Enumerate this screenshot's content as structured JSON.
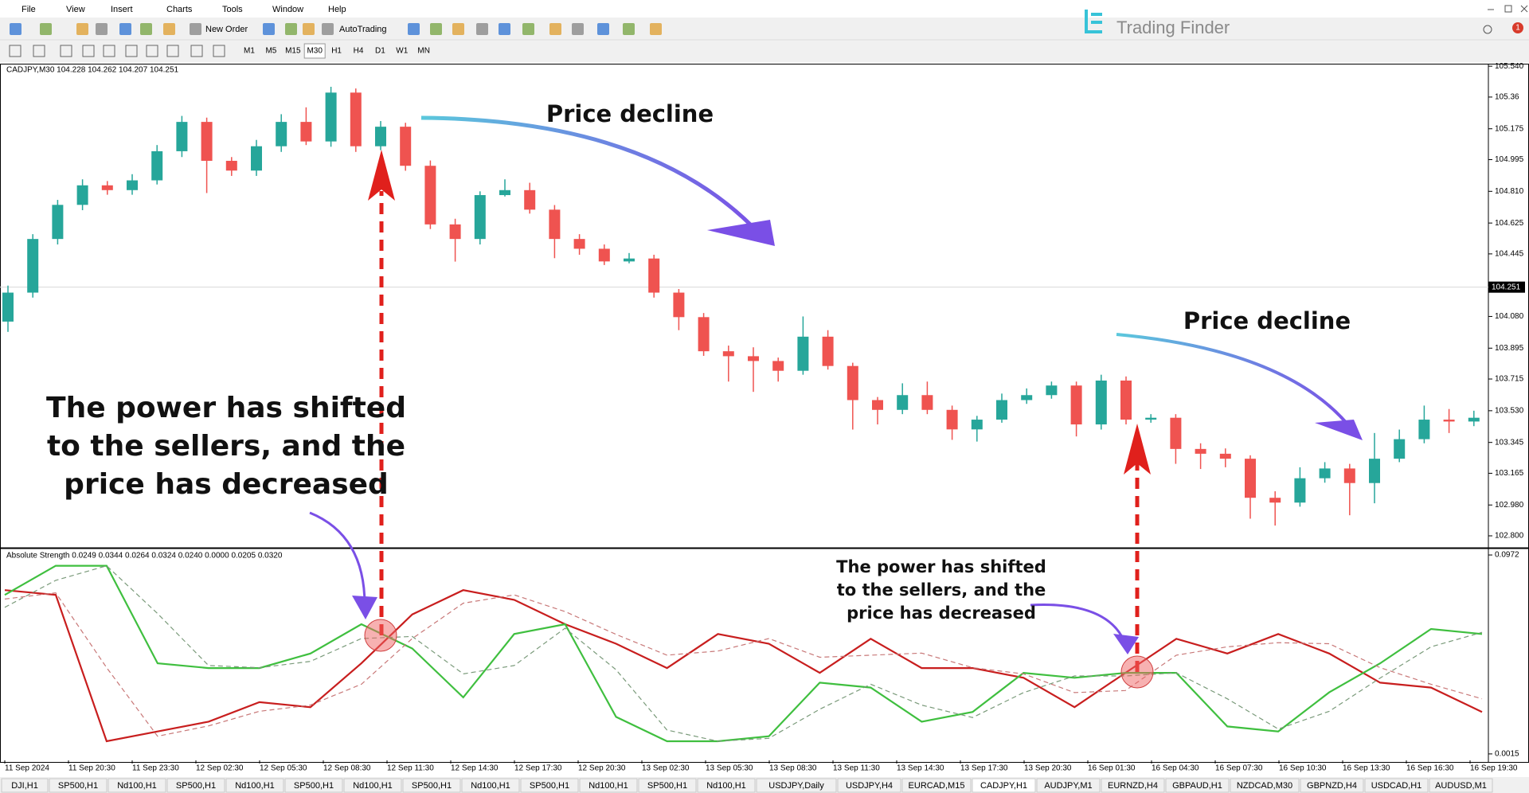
{
  "menu": [
    "File",
    "View",
    "Insert",
    "Charts",
    "Tools",
    "Window",
    "Help"
  ],
  "toolbar": {
    "new_order": "New Order",
    "autotrading": "AutoTrading",
    "timeframes": [
      "M1",
      "M5",
      "M15",
      "M30",
      "H1",
      "H4",
      "D1",
      "W1",
      "MN"
    ]
  },
  "logo": "Trading Finder",
  "badge": "1",
  "price_chart": {
    "type": "candlestick",
    "header": "CADJPY,M30  104.228 104.262 104.207 104.251",
    "up_color": "#26a69a",
    "down_color": "#ef5350",
    "ylim": [
      102.735,
      105.55
    ],
    "yticks": [
      {
        "value": 105.54,
        "label": "105.540"
      },
      105.36,
      105.175,
      104.995,
      {
        "value": 104.81,
        "label": "104.810"
      },
      104.625,
      104.445,
      {
        "value": 104.08,
        "label": "104.080"
      },
      103.895,
      103.715,
      {
        "value": 103.53,
        "label": "103.530"
      },
      103.345,
      103.165,
      {
        "value": 102.98,
        "label": "102.980"
      },
      {
        "value": 102.8,
        "label": "102.800"
      }
    ],
    "current_price": {
      "value": 104.251,
      "label": "104.251"
    },
    "candles": [
      [
        104.05,
        104.26,
        103.99,
        104.219
      ],
      [
        104.219,
        104.56,
        104.19,
        104.532
      ],
      [
        104.532,
        104.76,
        104.5,
        104.731
      ],
      [
        104.731,
        104.88,
        104.7,
        104.845
      ],
      [
        104.845,
        104.87,
        104.79,
        104.817
      ],
      [
        104.817,
        104.91,
        104.79,
        104.874
      ],
      [
        104.874,
        105.08,
        104.85,
        105.044
      ],
      [
        105.044,
        105.25,
        105.01,
        105.215
      ],
      [
        105.215,
        105.24,
        104.8,
        104.988
      ],
      [
        104.988,
        105.01,
        104.9,
        104.931
      ],
      [
        104.931,
        105.11,
        104.9,
        105.073
      ],
      [
        105.073,
        105.26,
        105.04,
        105.215
      ],
      [
        105.215,
        105.3,
        105.08,
        105.101
      ],
      [
        105.101,
        105.42,
        105.07,
        105.386
      ],
      [
        105.386,
        105.41,
        105.04,
        105.073
      ],
      [
        105.073,
        105.22,
        105.05,
        105.187
      ],
      [
        105.187,
        105.21,
        104.93,
        104.959
      ],
      [
        104.959,
        104.99,
        104.59,
        104.617
      ],
      [
        104.617,
        104.65,
        104.4,
        104.532
      ],
      [
        104.532,
        104.81,
        104.5,
        104.788
      ],
      [
        104.788,
        104.88,
        104.78,
        104.817
      ],
      [
        104.817,
        104.86,
        104.68,
        104.703
      ],
      [
        104.703,
        104.73,
        104.42,
        104.532
      ],
      [
        104.532,
        104.56,
        104.44,
        104.475
      ],
      [
        104.475,
        104.5,
        104.38,
        104.401
      ],
      [
        104.401,
        104.45,
        104.39,
        104.418
      ],
      [
        104.418,
        104.44,
        104.19,
        104.219
      ],
      [
        104.219,
        104.24,
        104.0,
        104.076
      ],
      [
        104.076,
        104.1,
        103.85,
        103.877
      ],
      [
        103.877,
        103.91,
        103.7,
        103.848
      ],
      [
        103.848,
        103.9,
        103.64,
        103.82
      ],
      [
        103.82,
        103.84,
        103.7,
        103.763
      ],
      [
        103.763,
        104.08,
        103.74,
        103.962
      ],
      [
        103.962,
        104.0,
        103.77,
        103.791
      ],
      [
        103.791,
        103.81,
        103.42,
        103.592
      ],
      [
        103.592,
        103.61,
        103.45,
        103.535
      ],
      [
        103.535,
        103.69,
        103.51,
        103.621
      ],
      [
        103.621,
        103.7,
        103.51,
        103.535
      ],
      [
        103.535,
        103.56,
        103.36,
        103.421
      ],
      [
        103.421,
        103.5,
        103.35,
        103.478
      ],
      [
        103.478,
        103.63,
        103.46,
        103.592
      ],
      [
        103.592,
        103.66,
        103.57,
        103.621
      ],
      [
        103.621,
        103.7,
        103.6,
        103.677
      ],
      [
        103.677,
        103.7,
        103.38,
        103.45
      ],
      [
        103.45,
        103.74,
        103.42,
        103.706
      ],
      [
        103.706,
        103.73,
        103.45,
        103.478
      ],
      [
        103.478,
        103.51,
        103.46,
        103.489
      ],
      [
        103.489,
        103.51,
        103.22,
        103.307
      ],
      [
        103.307,
        103.34,
        103.19,
        103.279
      ],
      [
        103.279,
        103.31,
        103.2,
        103.25
      ],
      [
        103.25,
        103.27,
        102.9,
        103.022
      ],
      [
        103.022,
        103.06,
        102.86,
        102.994
      ],
      [
        102.994,
        103.2,
        102.97,
        103.136
      ],
      [
        103.136,
        103.23,
        103.11,
        103.193
      ],
      [
        103.193,
        103.22,
        102.92,
        103.108
      ],
      [
        103.108,
        103.4,
        102.99,
        103.25
      ],
      [
        103.25,
        103.42,
        103.23,
        103.364
      ],
      [
        103.364,
        103.56,
        103.34,
        103.478
      ],
      [
        103.478,
        103.54,
        103.4,
        103.467
      ],
      [
        103.467,
        103.53,
        103.44,
        103.489
      ]
    ],
    "time_labels": [
      "11 Sep 2024",
      "11 Sep 20:30",
      "11 Sep 23:30",
      "12 Sep 02:30",
      "12 Sep 05:30",
      "12 Sep 08:30",
      "12 Sep 11:30",
      "12 Sep 14:30",
      "12 Sep 17:30",
      "12 Sep 20:30",
      "13 Sep 02:30",
      "13 Sep 05:30",
      "13 Sep 08:30",
      "13 Sep 11:30",
      "13 Sep 14:30",
      "13 Sep 17:30",
      "13 Sep 20:30",
      "16 Sep 01:30",
      "16 Sep 04:30",
      "16 Sep 07:30",
      "16 Sep 10:30",
      "16 Sep 13:30",
      "16 Sep 16:30",
      "16 Sep 19:30"
    ]
  },
  "indicator": {
    "type": "line",
    "header": "Absolute Strength 0.0249 0.0344 0.0264 0.0324 0.0240 0.0000 0.0205 0.0320",
    "ylim": [
      -0.0016,
      0.0999
    ],
    "yticks": [
      0.0972,
      0.0015
    ],
    "series": [
      {
        "color": "#c81e1e",
        "dashed": false,
        "values": [
          0.0803,
          0.078,
          0.0076,
          0.0123,
          0.017,
          0.0264,
          0.024,
          0.0451,
          0.0686,
          0.0803,
          0.0756,
          0.0639,
          0.0545,
          0.0428,
          0.0592,
          0.0545,
          0.0405,
          0.0569,
          0.0428,
          0.0428,
          0.0381,
          0.024,
          0.0405,
          0.0569,
          0.0498,
          0.0592,
          0.0498,
          0.0358,
          0.0334,
          0.0217
        ]
      },
      {
        "color": "#3fbf3f",
        "dashed": false,
        "values": [
          0.078,
          0.092,
          0.092,
          0.0451,
          0.0428,
          0.0428,
          0.0498,
          0.0639,
          0.0522,
          0.0287,
          0.0592,
          0.0639,
          0.0193,
          0.0076,
          0.0076,
          0.01,
          0.0358,
          0.0334,
          0.017,
          0.0217,
          0.0405,
          0.0381,
          0.0405,
          0.0405,
          0.0147,
          0.0123,
          0.0311,
          0.0451,
          0.0616,
          0.0592
        ]
      },
      {
        "color": "#c87878",
        "dashed": true,
        "values": [
          0.076,
          0.079,
          0.043,
          0.01,
          0.015,
          0.022,
          0.025,
          0.035,
          0.057,
          0.074,
          0.078,
          0.07,
          0.059,
          0.049,
          0.051,
          0.057,
          0.048,
          0.049,
          0.05,
          0.043,
          0.04,
          0.031,
          0.032,
          0.049,
          0.053,
          0.055,
          0.0545,
          0.043,
          0.035,
          0.028
        ]
      },
      {
        "color": "#7a9a7a",
        "dashed": true,
        "values": [
          0.072,
          0.085,
          0.092,
          0.069,
          0.044,
          0.043,
          0.046,
          0.057,
          0.058,
          0.04,
          0.044,
          0.062,
          0.042,
          0.013,
          0.0076,
          0.009,
          0.023,
          0.035,
          0.025,
          0.019,
          0.031,
          0.039,
          0.039,
          0.0405,
          0.028,
          0.0135,
          0.022,
          0.038,
          0.053,
          0.06
        ]
      }
    ]
  },
  "annotations": {
    "decline_1": "Price decline",
    "decline_2": "Price decline",
    "big_note": [
      "The power has shifted",
      "to the sellers, and the",
      "price has decreased"
    ],
    "small_note": [
      "The power has shifted",
      "to the sellers, and the",
      "price has decreased"
    ]
  },
  "tabs": [
    "DJI,H1",
    "SP500,H1",
    "Nd100,H1",
    "SP500,H1",
    "Nd100,H1",
    "SP500,H1",
    "Nd100,H1",
    "SP500,H1",
    "Nd100,H1",
    "SP500,H1",
    "Nd100,H1",
    "SP500,H1",
    "Nd100,H1",
    "USDJPY,Daily",
    "USDJPY,H4",
    "EURCAD,M15",
    "CADJPY,H1",
    "AUDJPY,M1",
    "EURNZD,H4",
    "GBPAUD,H1",
    "NZDCAD,M30",
    "GBPNZD,H4",
    "USDCAD,H1",
    "AUDUSD,M1"
  ]
}
